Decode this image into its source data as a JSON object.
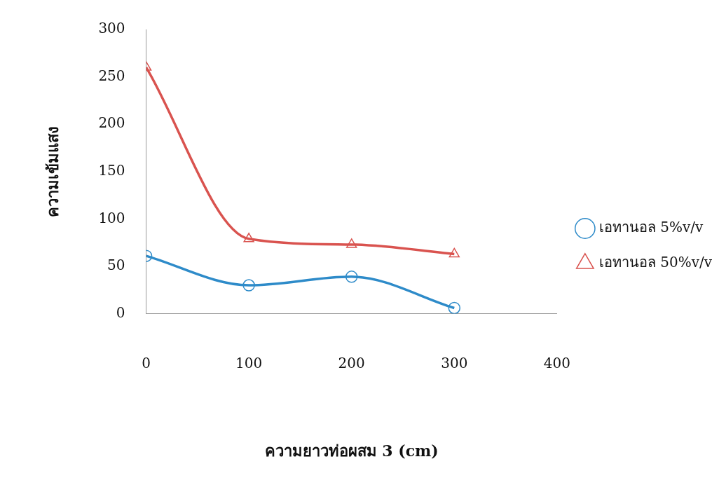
{
  "chart_data": {
    "type": "line",
    "xlabel": "ความยาวท่อผสม 3 (cm)",
    "ylabel": "ความเข้มแสง",
    "x": [
      0,
      100,
      200,
      300
    ],
    "series": [
      {
        "name": "เอทานอล 5%v/v",
        "color": "#2e8bc9",
        "values": [
          61,
          30,
          39,
          6
        ],
        "marker": "circle"
      },
      {
        "name": "เอทานอล 50%v/v",
        "color": "#d9534f",
        "values": [
          260,
          79,
          73,
          63
        ],
        "marker": "triangle"
      }
    ],
    "xlim": [
      0,
      400
    ],
    "xticks": [
      0,
      100,
      200,
      300,
      400
    ],
    "ylim": [
      0,
      300
    ],
    "yticks": [
      0,
      50,
      100,
      150,
      200,
      250,
      300
    ],
    "grid": false,
    "legend": "right",
    "line_style": "solid"
  }
}
